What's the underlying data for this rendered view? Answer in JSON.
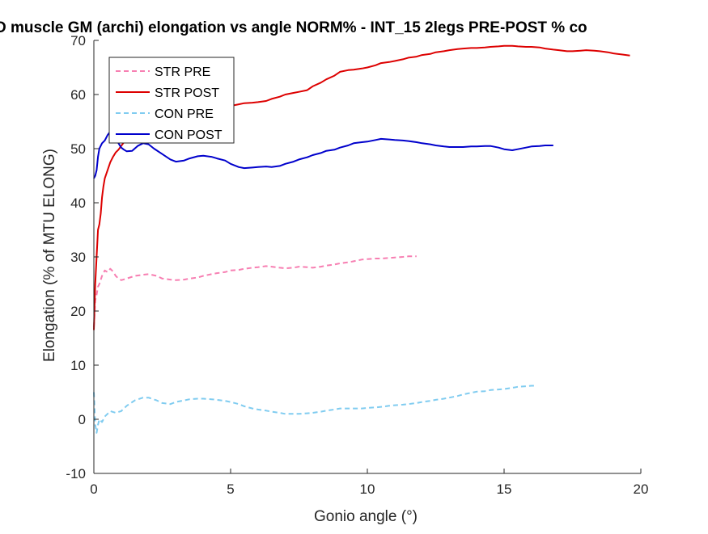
{
  "chart_data": {
    "type": "line",
    "title": "D muscle GM (archi) elongation vs angle NORM% - INT_15 2legs PRE-POST % co",
    "xlabel": "Gonio angle (°)",
    "ylabel": "Elongation (% of MTU ELONG)",
    "xlim": [
      0,
      20
    ],
    "ylim": [
      -10,
      70
    ],
    "xticks": [
      0,
      5,
      10,
      15,
      20
    ],
    "yticks": [
      -10,
      0,
      10,
      20,
      30,
      40,
      50,
      60,
      70
    ],
    "grid": false,
    "legend_position": "top-left",
    "series": [
      {
        "name": "STR PRE",
        "color": "#f77fb2",
        "dash": "dashed",
        "x": [
          0.0,
          0.05,
          0.1,
          0.15,
          0.2,
          0.3,
          0.4,
          0.5,
          0.6,
          0.7,
          0.8,
          0.9,
          1.0,
          1.2,
          1.5,
          1.8,
          2.0,
          2.3,
          2.5,
          2.8,
          3.0,
          3.3,
          3.5,
          3.8,
          4.0,
          4.3,
          4.5,
          4.8,
          5.0,
          5.3,
          5.5,
          5.8,
          6.0,
          6.3,
          6.5,
          6.8,
          7.0,
          7.3,
          7.5,
          7.8,
          8.0,
          8.3,
          8.5,
          8.8,
          9.0,
          9.3,
          9.5,
          9.8,
          10.0,
          10.3,
          10.5,
          10.8,
          11.0,
          11.3,
          11.5,
          11.8
        ],
        "y": [
          17.0,
          22.0,
          23.0,
          24.5,
          25.0,
          26.5,
          27.5,
          27.2,
          27.8,
          27.3,
          26.5,
          26.0,
          25.7,
          26.0,
          26.5,
          26.7,
          26.8,
          26.5,
          26.0,
          25.8,
          25.7,
          25.8,
          26.0,
          26.2,
          26.5,
          26.8,
          27.0,
          27.2,
          27.5,
          27.6,
          27.8,
          28.0,
          28.1,
          28.3,
          28.2,
          28.0,
          27.9,
          28.0,
          28.2,
          28.1,
          28.0,
          28.2,
          28.4,
          28.6,
          28.8,
          29.0,
          29.2,
          29.5,
          29.6,
          29.7,
          29.7,
          29.8,
          29.9,
          30.0,
          30.1,
          30.1
        ]
      },
      {
        "name": "STR POST",
        "color": "#dd0000",
        "dash": "solid",
        "x": [
          0.0,
          0.05,
          0.1,
          0.15,
          0.2,
          0.25,
          0.3,
          0.35,
          0.4,
          0.5,
          0.6,
          0.7,
          0.8,
          0.9,
          1.0,
          1.1,
          1.2,
          1.4,
          1.6,
          1.8,
          2.0,
          2.2,
          2.5,
          2.8,
          3.0,
          3.3,
          3.5,
          3.8,
          4.0,
          4.3,
          4.5,
          4.8,
          5.0,
          5.3,
          5.5,
          5.8,
          6.0,
          6.3,
          6.5,
          6.8,
          7.0,
          7.3,
          7.5,
          7.8,
          8.0,
          8.3,
          8.5,
          8.8,
          9.0,
          9.3,
          9.5,
          9.8,
          10.0,
          10.3,
          10.5,
          10.8,
          11.0,
          11.3,
          11.5,
          11.8,
          12.0,
          12.3,
          12.5,
          12.8,
          13.0,
          13.3,
          13.5,
          13.8,
          14.0,
          14.3,
          14.5,
          14.8,
          15.0,
          15.3,
          15.5,
          15.8,
          16.0,
          16.3,
          16.5,
          16.8,
          17.0,
          17.3,
          17.5,
          17.8,
          18.0,
          18.3,
          18.5,
          18.8,
          19.0,
          19.3,
          19.6
        ],
        "y": [
          16.5,
          25.0,
          30.0,
          35.0,
          36.0,
          38.0,
          41.0,
          43.0,
          44.5,
          46.0,
          47.5,
          48.5,
          49.3,
          49.8,
          50.5,
          51.2,
          52.0,
          52.8,
          53.3,
          53.6,
          53.8,
          54.0,
          54.2,
          54.5,
          54.8,
          55.2,
          55.5,
          56.0,
          56.3,
          56.8,
          57.2,
          57.6,
          57.9,
          58.2,
          58.4,
          58.5,
          58.6,
          58.8,
          59.2,
          59.6,
          60.0,
          60.3,
          60.5,
          60.8,
          61.5,
          62.2,
          62.8,
          63.5,
          64.2,
          64.5,
          64.6,
          64.8,
          65.0,
          65.4,
          65.8,
          66.0,
          66.2,
          66.5,
          66.8,
          67.0,
          67.3,
          67.5,
          67.8,
          68.0,
          68.2,
          68.4,
          68.5,
          68.6,
          68.6,
          68.7,
          68.8,
          68.9,
          69.0,
          69.0,
          68.9,
          68.8,
          68.8,
          68.7,
          68.5,
          68.3,
          68.2,
          68.0,
          68.0,
          68.1,
          68.2,
          68.1,
          68.0,
          67.8,
          67.6,
          67.4,
          67.2
        ]
      },
      {
        "name": "CON PRE",
        "color": "#80ccf0",
        "dash": "dashed",
        "x": [
          0.0,
          0.05,
          0.1,
          0.15,
          0.2,
          0.3,
          0.4,
          0.5,
          0.6,
          0.8,
          1.0,
          1.2,
          1.5,
          1.8,
          2.0,
          2.3,
          2.5,
          2.8,
          3.0,
          3.3,
          3.5,
          3.8,
          4.0,
          4.3,
          4.5,
          4.8,
          5.0,
          5.3,
          5.5,
          5.8,
          6.0,
          6.3,
          6.5,
          6.8,
          7.0,
          7.3,
          7.5,
          7.8,
          8.0,
          8.3,
          8.5,
          8.8,
          9.0,
          9.3,
          9.5,
          9.8,
          10.0,
          10.3,
          10.5,
          10.8,
          11.0,
          11.3,
          11.5,
          11.8,
          12.0,
          12.3,
          12.5,
          12.8,
          13.0,
          13.3,
          13.5,
          13.8,
          14.0,
          14.3,
          14.5,
          14.8,
          15.0,
          15.3,
          15.5,
          15.8,
          16.0,
          16.2
        ],
        "y": [
          5.0,
          -1.0,
          -2.5,
          -1.0,
          0.0,
          -0.5,
          0.5,
          1.0,
          1.5,
          1.2,
          1.5,
          2.5,
          3.5,
          4.0,
          4.0,
          3.5,
          3.0,
          2.8,
          3.2,
          3.5,
          3.7,
          3.8,
          3.8,
          3.7,
          3.6,
          3.4,
          3.2,
          2.8,
          2.4,
          2.0,
          1.8,
          1.6,
          1.4,
          1.2,
          1.0,
          1.0,
          1.0,
          1.1,
          1.2,
          1.4,
          1.6,
          1.8,
          2.0,
          2.0,
          2.0,
          2.0,
          2.1,
          2.2,
          2.3,
          2.5,
          2.6,
          2.7,
          2.8,
          3.0,
          3.2,
          3.4,
          3.6,
          3.8,
          4.0,
          4.3,
          4.6,
          4.9,
          5.1,
          5.2,
          5.4,
          5.5,
          5.6,
          5.8,
          6.0,
          6.1,
          6.2,
          6.2
        ]
      },
      {
        "name": "CON POST",
        "color": "#0000cc",
        "dash": "solid",
        "x": [
          0.0,
          0.05,
          0.1,
          0.15,
          0.2,
          0.3,
          0.4,
          0.5,
          0.6,
          0.7,
          0.8,
          0.9,
          1.0,
          1.1,
          1.2,
          1.4,
          1.6,
          1.8,
          2.0,
          2.2,
          2.5,
          2.8,
          3.0,
          3.3,
          3.5,
          3.8,
          4.0,
          4.3,
          4.5,
          4.8,
          5.0,
          5.3,
          5.5,
          5.8,
          6.0,
          6.3,
          6.5,
          6.8,
          7.0,
          7.3,
          7.5,
          7.8,
          8.0,
          8.3,
          8.5,
          8.8,
          9.0,
          9.3,
          9.5,
          9.8,
          10.0,
          10.3,
          10.5,
          10.8,
          11.0,
          11.3,
          11.5,
          11.8,
          12.0,
          12.3,
          12.5,
          12.8,
          13.0,
          13.3,
          13.5,
          13.8,
          14.0,
          14.3,
          14.5,
          14.8,
          15.0,
          15.3,
          15.5,
          15.8,
          16.0,
          16.3,
          16.5,
          16.8
        ],
        "y": [
          44.5,
          45.0,
          46.0,
          48.5,
          50.0,
          51.0,
          51.5,
          52.5,
          53.2,
          53.0,
          52.5,
          51.0,
          50.2,
          49.8,
          49.5,
          49.6,
          50.5,
          51.0,
          50.8,
          50.0,
          49.0,
          48.0,
          47.6,
          47.8,
          48.2,
          48.6,
          48.7,
          48.5,
          48.2,
          47.8,
          47.2,
          46.6,
          46.4,
          46.5,
          46.6,
          46.7,
          46.6,
          46.8,
          47.2,
          47.6,
          48.0,
          48.4,
          48.8,
          49.2,
          49.6,
          49.8,
          50.2,
          50.6,
          51.0,
          51.2,
          51.3,
          51.6,
          51.8,
          51.7,
          51.6,
          51.5,
          51.4,
          51.2,
          51.0,
          50.8,
          50.6,
          50.4,
          50.3,
          50.3,
          50.3,
          50.4,
          50.4,
          50.5,
          50.5,
          50.2,
          49.9,
          49.7,
          49.9,
          50.2,
          50.4,
          50.5,
          50.6,
          50.6
        ]
      }
    ]
  }
}
